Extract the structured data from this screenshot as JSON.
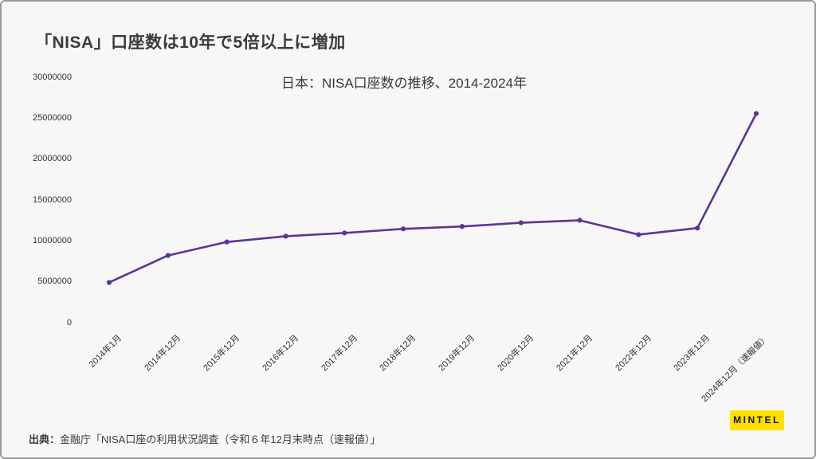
{
  "page": {
    "title": "「NISA」口座数は10年で5倍以上に増加",
    "source_label": "出典：",
    "source_text": "金融庁「NISA口座の利用状況調査（令和６年12月末時点（速報値）」",
    "logo_text": "MINTEL"
  },
  "colors": {
    "background": "#f7f7f7",
    "line": "#5b3494",
    "text": "#3a3a3a",
    "tick_text": "#333333",
    "logo_bg": "#ffe000",
    "logo_text": "#141414"
  },
  "chart_data": {
    "type": "line",
    "title": "日本：NISA口座数の推移、2014-2024年",
    "xlabel": "",
    "ylabel": "",
    "categories": [
      "2014年1月",
      "2014年12月",
      "2015年12月",
      "2016年12月",
      "2017年12月",
      "2018年12月",
      "2019年12月",
      "2020年12月",
      "2021年12月",
      "2022年12月",
      "2023年12月",
      "2024年12月（速報値）"
    ],
    "series": [
      {
        "name": "NISA口座数",
        "values": [
          4950000,
          8250000,
          9900000,
          10600000,
          11000000,
          11500000,
          11800000,
          12250000,
          12550000,
          10800000,
          11600000,
          25600000
        ]
      }
    ],
    "ylim": [
      0,
      30000000
    ],
    "yticks": [
      0,
      5000000,
      10000000,
      15000000,
      20000000,
      25000000,
      30000000
    ],
    "grid": false,
    "legend": "none",
    "marker": "circle"
  }
}
